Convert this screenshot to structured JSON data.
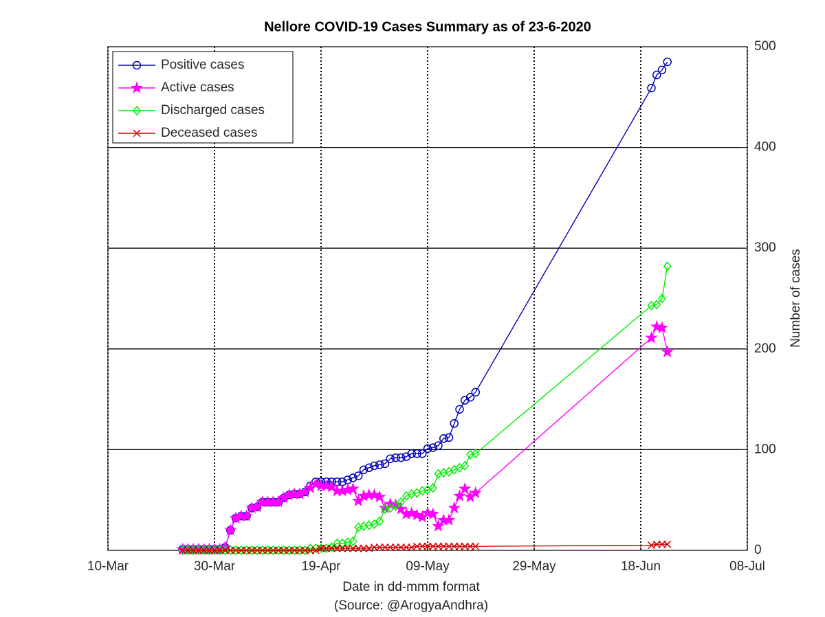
{
  "chart_data": {
    "type": "line",
    "title": "Nellore COVID-19 Cases Summary as of 23-6-2020",
    "xlabel": "Date in dd-mmm format",
    "source": "(Source: @ArogyaAndhra)",
    "ylabel": "Number of cases",
    "x": [
      "2020-03-24",
      "2020-03-25",
      "2020-03-26",
      "2020-03-27",
      "2020-03-28",
      "2020-03-29",
      "2020-03-30",
      "2020-03-31",
      "2020-04-01",
      "2020-04-02",
      "2020-04-03",
      "2020-04-04",
      "2020-04-05",
      "2020-04-06",
      "2020-04-07",
      "2020-04-08",
      "2020-04-09",
      "2020-04-10",
      "2020-04-11",
      "2020-04-12",
      "2020-04-13",
      "2020-04-14",
      "2020-04-15",
      "2020-04-16",
      "2020-04-17",
      "2020-04-18",
      "2020-04-19",
      "2020-04-20",
      "2020-04-21",
      "2020-04-22",
      "2020-04-23",
      "2020-04-24",
      "2020-04-25",
      "2020-04-26",
      "2020-04-27",
      "2020-04-28",
      "2020-04-29",
      "2020-04-30",
      "2020-05-01",
      "2020-05-02",
      "2020-05-03",
      "2020-05-04",
      "2020-05-05",
      "2020-05-06",
      "2020-05-07",
      "2020-05-08",
      "2020-05-09",
      "2020-05-10",
      "2020-05-11",
      "2020-05-12",
      "2020-05-13",
      "2020-05-14",
      "2020-05-15",
      "2020-05-16",
      "2020-05-17",
      "2020-05-18",
      "2020-06-20",
      "2020-06-21",
      "2020-06-22",
      "2020-06-23"
    ],
    "series": [
      {
        "name": "Positive cases",
        "color": "#0000b4",
        "marker": "circle",
        "values": [
          1,
          1,
          1,
          1,
          1,
          1,
          1,
          1,
          3,
          20,
          32,
          34,
          34,
          42,
          43,
          48,
          48,
          48,
          48,
          52,
          55,
          56,
          56,
          58,
          64,
          68,
          68,
          68,
          68,
          68,
          68,
          70,
          72,
          74,
          80,
          82,
          84,
          85,
          86,
          91,
          92,
          92,
          93,
          96,
          96,
          96,
          101,
          102,
          104,
          111,
          112,
          126,
          140,
          149,
          152,
          157,
          459,
          472,
          477,
          485
        ]
      },
      {
        "name": "Active cases",
        "color": "#ff00ff",
        "marker": "star",
        "values": [
          1,
          1,
          1,
          1,
          1,
          1,
          1,
          1,
          3,
          20,
          32,
          34,
          34,
          42,
          43,
          48,
          48,
          48,
          48,
          52,
          55,
          56,
          56,
          58,
          62,
          66,
          64,
          64,
          63,
          59,
          59,
          60,
          61,
          49,
          54,
          55,
          55,
          53,
          42,
          46,
          45,
          41,
          36,
          37,
          35,
          33,
          37,
          36,
          24,
          30,
          30,
          42,
          54,
          61,
          53,
          57,
          211,
          222,
          221,
          197
        ]
      },
      {
        "name": "Discharged cases",
        "color": "#00ee00",
        "marker": "diamond",
        "values": [
          0,
          0,
          0,
          0,
          0,
          0,
          0,
          0,
          0,
          0,
          0,
          0,
          0,
          0,
          0,
          0,
          0,
          0,
          0,
          0,
          0,
          0,
          0,
          0,
          2,
          2,
          2,
          2,
          3,
          7,
          7,
          8,
          9,
          23,
          24,
          25,
          26,
          29,
          41,
          42,
          44,
          48,
          54,
          56,
          57,
          59,
          60,
          62,
          76,
          77,
          78,
          80,
          82,
          84,
          95,
          96,
          243,
          244,
          250,
          282
        ]
      },
      {
        "name": "Deceased cases",
        "color": "#d40000",
        "marker": "x",
        "values": [
          0,
          0,
          0,
          0,
          0,
          0,
          0,
          0,
          0,
          0,
          0,
          0,
          0,
          0,
          0,
          0,
          0,
          0,
          0,
          0,
          0,
          0,
          0,
          0,
          0,
          0,
          2,
          2,
          2,
          2,
          2,
          2,
          2,
          2,
          2,
          2,
          3,
          3,
          3,
          3,
          3,
          3,
          3,
          3,
          4,
          4,
          4,
          4,
          4,
          4,
          4,
          4,
          4,
          4,
          4,
          4,
          5,
          6,
          6,
          6
        ]
      }
    ],
    "xlim": [
      "2020-03-10",
      "2020-07-08"
    ],
    "xticks": [
      {
        "value": "2020-03-10",
        "label": "10-Mar"
      },
      {
        "value": "2020-03-30",
        "label": "30-Mar"
      },
      {
        "value": "2020-04-19",
        "label": "19-Apr"
      },
      {
        "value": "2020-05-09",
        "label": "09-May"
      },
      {
        "value": "2020-05-29",
        "label": "29-May"
      },
      {
        "value": "2020-06-18",
        "label": "18-Jun"
      },
      {
        "value": "2020-07-08",
        "label": "08-Jul"
      }
    ],
    "ylim": [
      0,
      500
    ],
    "yticks": [
      0,
      100,
      200,
      300,
      400,
      500
    ],
    "y_axis_side": "right",
    "grid": true,
    "legend_position": "upper left"
  }
}
